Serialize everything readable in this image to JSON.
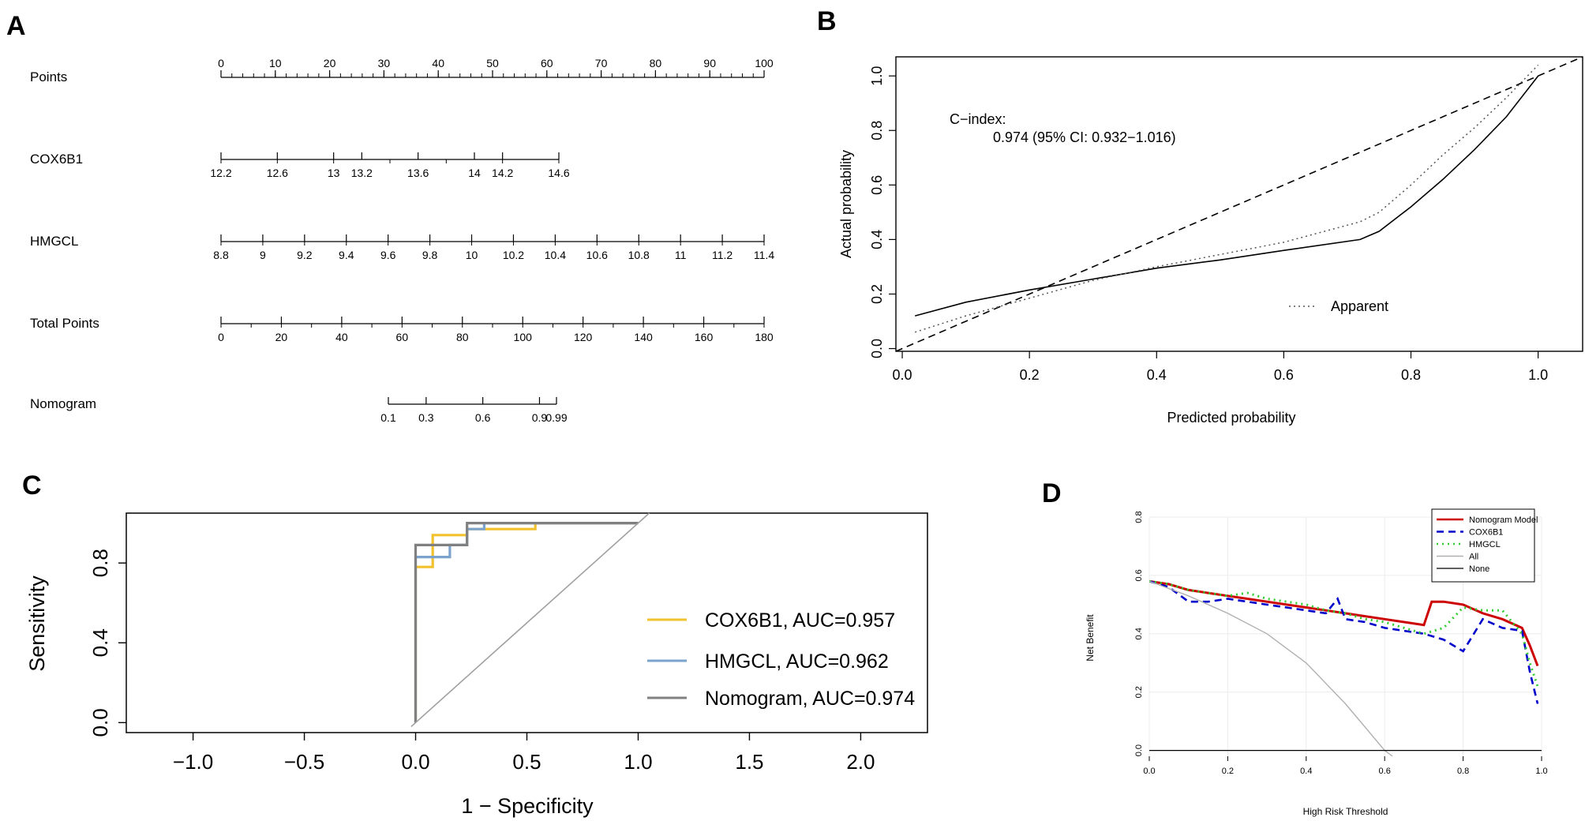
{
  "panels": {
    "A": "A",
    "B": "B",
    "C": "C",
    "D": "D"
  },
  "colors": {
    "cox6b1_roc": "#f2c12e",
    "hmgcl_roc": "#7ba3cc",
    "nomogram_roc": "#808080",
    "dca_nomogram": "#cc0000",
    "dca_cox6b1": "#0000cc",
    "dca_hmgcl": "#33cc33",
    "dca_all": "#b0b0b0",
    "dca_none": "#000000"
  },
  "chart_data": [
    {
      "type": "nomogram",
      "scales": [
        {
          "name": "Points",
          "ticks": [
            "0",
            "10",
            "20",
            "30",
            "40",
            "50",
            "60",
            "70",
            "80",
            "90",
            "100"
          ],
          "labels_above": true
        },
        {
          "name": "COX6B1",
          "ticks": [
            "12.2",
            "12.6",
            "13",
            "13.2",
            "13.6",
            "14",
            "14.2",
            "14.6"
          ]
        },
        {
          "name": "HMGCL",
          "ticks": [
            "8.8",
            "9",
            "9.2",
            "9.4",
            "9.6",
            "9.8",
            "10",
            "10.2",
            "10.4",
            "10.6",
            "10.8",
            "11",
            "11.2",
            "11.4"
          ]
        },
        {
          "name": "Total Points",
          "ticks": [
            "0",
            "20",
            "40",
            "60",
            "80",
            "100",
            "120",
            "140",
            "160",
            "180"
          ]
        },
        {
          "name": "Nomogram",
          "ticks": [
            "0.1",
            "0.3",
            "0.6",
            "0.9",
            "0.99"
          ]
        }
      ]
    },
    {
      "type": "line",
      "xlabel": "Predicted probability",
      "ylabel": "Actual probability",
      "xlim": [
        -0.01,
        1.07
      ],
      "ylim": [
        -0.01,
        1.07
      ],
      "xticks": [
        "0.0",
        "0.2",
        "0.4",
        "0.6",
        "0.8",
        "1.0"
      ],
      "yticks": [
        "0.0",
        "0.2",
        "0.4",
        "0.6",
        "0.8",
        "1.0"
      ],
      "annotation_title": "C−index:",
      "annotation_value": "0.974 (95% CI: 0.932−1.016)",
      "legend_label": "Apparent",
      "series": [
        {
          "style": "dashed",
          "x": [
            -0.01,
            1.07
          ],
          "y": [
            -0.01,
            1.07
          ]
        },
        {
          "style": "solid",
          "x": [
            0.02,
            0.1,
            0.2,
            0.3,
            0.4,
            0.5,
            0.6,
            0.72,
            0.75,
            0.8,
            0.85,
            0.9,
            0.95,
            1.0
          ],
          "y": [
            0.12,
            0.17,
            0.215,
            0.255,
            0.295,
            0.325,
            0.36,
            0.4,
            0.43,
            0.52,
            0.62,
            0.73,
            0.85,
            1.0
          ]
        },
        {
          "name": "Apparent",
          "style": "dotted",
          "x": [
            0.02,
            0.1,
            0.2,
            0.3,
            0.4,
            0.5,
            0.6,
            0.72,
            0.75,
            0.8,
            0.85,
            0.9,
            0.95,
            1.0
          ],
          "y": [
            0.06,
            0.12,
            0.185,
            0.25,
            0.3,
            0.345,
            0.39,
            0.465,
            0.5,
            0.6,
            0.71,
            0.81,
            0.92,
            1.04
          ]
        }
      ]
    },
    {
      "type": "line",
      "xlabel": "1 − Specificity",
      "ylabel": "Sensitivity",
      "xlim": [
        -1.3,
        2.3
      ],
      "ylim": [
        -0.05,
        1.05
      ],
      "xticks": [
        "−1.0",
        "−0.5",
        "0.0",
        "0.5",
        "1.0",
        "1.5",
        "2.0"
      ],
      "yticks": [
        "0.0",
        "0.4",
        "0.8"
      ],
      "series": [
        {
          "name": "COX6B1, AUC=0.957",
          "x": [
            0,
            0,
            0.077,
            0.077,
            0.231,
            0.231,
            0.538,
            0.538,
            1.0
          ],
          "y": [
            0,
            0.78,
            0.78,
            0.94,
            0.94,
            0.97,
            0.97,
            1.0,
            1.0
          ]
        },
        {
          "name": "HMGCL, AUC=0.962",
          "x": [
            0,
            0,
            0.154,
            0.154,
            0.231,
            0.231,
            0.308,
            0.308,
            1.0
          ],
          "y": [
            0,
            0.83,
            0.83,
            0.89,
            0.89,
            0.97,
            0.97,
            1.0,
            1.0
          ]
        },
        {
          "name": "Nomogram, AUC=0.974",
          "x": [
            0,
            0,
            0.077,
            0.077,
            0.231,
            0.231,
            1.0
          ],
          "y": [
            0,
            0.89,
            0.89,
            0.89,
            0.89,
            1.0,
            1.0
          ]
        },
        {
          "style": "diagonal",
          "x": [
            -0.02,
            1.05
          ],
          "y": [
            -0.02,
            1.05
          ]
        }
      ]
    },
    {
      "type": "line",
      "xlabel": "High Risk Threshold",
      "ylabel": "Net Benefit",
      "xlim": [
        0,
        1
      ],
      "ylim": [
        -0.02,
        0.8
      ],
      "xticks": [
        "0.0",
        "0.2",
        "0.4",
        "0.6",
        "0.8",
        "1.0"
      ],
      "yticks": [
        "0.0",
        "0.2",
        "0.4",
        "0.6",
        "0.8"
      ],
      "series": [
        {
          "name": "Nomogram Model",
          "x": [
            0,
            0.05,
            0.1,
            0.15,
            0.2,
            0.25,
            0.3,
            0.35,
            0.4,
            0.45,
            0.5,
            0.55,
            0.6,
            0.65,
            0.7,
            0.72,
            0.75,
            0.8,
            0.85,
            0.9,
            0.95,
            0.97,
            0.99
          ],
          "y": [
            0.58,
            0.57,
            0.55,
            0.54,
            0.53,
            0.52,
            0.51,
            0.5,
            0.49,
            0.48,
            0.47,
            0.46,
            0.45,
            0.44,
            0.43,
            0.51,
            0.51,
            0.5,
            0.47,
            0.45,
            0.42,
            0.36,
            0.29
          ]
        },
        {
          "name": "COX6B1",
          "x": [
            0,
            0.05,
            0.1,
            0.15,
            0.2,
            0.25,
            0.3,
            0.35,
            0.4,
            0.45,
            0.48,
            0.5,
            0.55,
            0.6,
            0.65,
            0.7,
            0.75,
            0.8,
            0.85,
            0.9,
            0.95,
            0.97,
            0.99
          ],
          "y": [
            0.58,
            0.56,
            0.51,
            0.51,
            0.52,
            0.51,
            0.5,
            0.49,
            0.48,
            0.47,
            0.52,
            0.45,
            0.44,
            0.42,
            0.41,
            0.4,
            0.38,
            0.34,
            0.45,
            0.42,
            0.41,
            0.27,
            0.16
          ]
        },
        {
          "name": "HMGCL",
          "x": [
            0,
            0.05,
            0.1,
            0.15,
            0.2,
            0.25,
            0.3,
            0.35,
            0.4,
            0.45,
            0.5,
            0.55,
            0.6,
            0.65,
            0.7,
            0.75,
            0.8,
            0.85,
            0.9,
            0.95,
            0.97,
            0.99
          ],
          "y": [
            0.58,
            0.57,
            0.55,
            0.54,
            0.53,
            0.54,
            0.52,
            0.51,
            0.5,
            0.48,
            0.47,
            0.45,
            0.44,
            0.42,
            0.4,
            0.42,
            0.49,
            0.48,
            0.48,
            0.4,
            0.3,
            0.22
          ]
        },
        {
          "name": "All",
          "x": [
            0,
            0.1,
            0.2,
            0.3,
            0.4,
            0.5,
            0.6,
            0.62
          ],
          "y": [
            0.58,
            0.53,
            0.47,
            0.4,
            0.3,
            0.16,
            0.0,
            -0.02
          ]
        },
        {
          "name": "None",
          "x": [
            0,
            1
          ],
          "y": [
            0,
            0
          ]
        }
      ]
    }
  ]
}
